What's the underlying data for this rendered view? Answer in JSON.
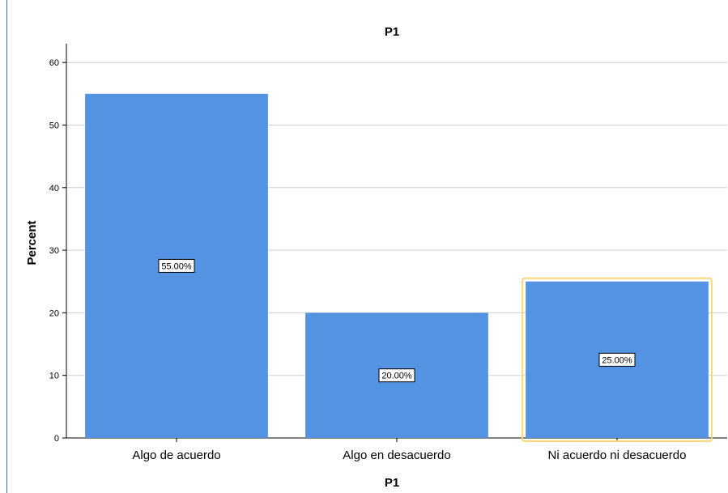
{
  "chart_data": {
    "type": "bar",
    "title": "P1",
    "xlabel": "P1",
    "ylabel": "Percent",
    "categories": [
      "Algo de acuerdo",
      "Algo en desacuerdo",
      "Ni acuerdo ni desacuerdo"
    ],
    "values": [
      55,
      20,
      25
    ],
    "data_labels": [
      "55.00%",
      "20.00%",
      "25.00%"
    ],
    "ylim": [
      0,
      63
    ],
    "yticks": [
      0,
      10,
      20,
      30,
      40,
      50,
      60
    ],
    "ytick_labels": [
      "0",
      "10",
      "20",
      "30",
      "40",
      "50",
      "60"
    ],
    "grid": true,
    "bar_color": "#5493e2",
    "selected_index": 2,
    "selection_color": "#f5d77a"
  }
}
